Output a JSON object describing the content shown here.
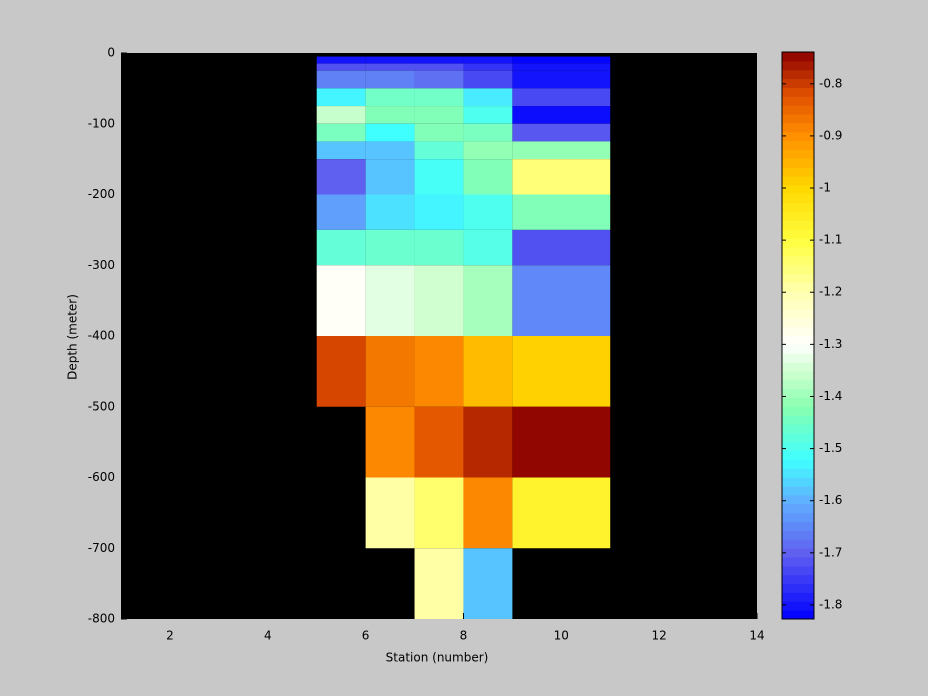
{
  "chart_data": {
    "type": "heatmap",
    "xlabel": "Station (number)",
    "ylabel": "Depth (meter)",
    "xlim": [
      1,
      14
    ],
    "ylim": [
      -800,
      0
    ],
    "xticks": [
      2,
      4,
      6,
      8,
      10,
      12,
      14
    ],
    "yticks": [
      0,
      -100,
      -200,
      -300,
      -400,
      -500,
      -600,
      -700,
      -800
    ],
    "background": "#000000",
    "x_edges": [
      5,
      6,
      7,
      8,
      9,
      11
    ],
    "y_edges": [
      -5,
      -15,
      -25,
      -50,
      -75,
      -100,
      -125,
      -150,
      -200,
      -250,
      -300,
      -400,
      -500,
      -600,
      -700,
      -800
    ],
    "z": [
      [
        -1.8,
        -1.8,
        -1.8,
        -1.8,
        -1.82
      ],
      [
        -1.72,
        -1.72,
        -1.72,
        -1.76,
        -1.8
      ],
      [
        -1.66,
        -1.66,
        -1.68,
        -1.73,
        -1.8
      ],
      [
        -1.53,
        -1.45,
        -1.45,
        -1.54,
        -1.73
      ],
      [
        -1.36,
        -1.43,
        -1.43,
        -1.5,
        -1.81
      ],
      [
        -1.44,
        -1.52,
        -1.43,
        -1.44,
        -1.71
      ],
      [
        -1.58,
        -1.58,
        -1.47,
        -1.41,
        -1.41
      ],
      [
        -1.7,
        -1.58,
        -1.51,
        -1.43,
        -1.15
      ],
      [
        -1.62,
        -1.55,
        -1.53,
        -1.5,
        -1.43
      ],
      [
        -1.47,
        -1.46,
        -1.46,
        -1.49,
        -1.72
      ],
      [
        -1.29,
        -1.33,
        -1.35,
        -1.39,
        -1.65
      ],
      [
        -0.81,
        -0.87,
        -0.89,
        -0.96,
        -0.99
      ],
      [
        null,
        -0.89,
        -0.83,
        -0.78,
        -0.745
      ],
      [
        null,
        -1.19,
        -1.14,
        -0.89,
        -1.07
      ],
      [
        null,
        null,
        -1.19,
        -1.58,
        null
      ]
    ],
    "clim": [
      -1.827,
      -0.739
    ],
    "colorbar_ticks": [
      -0.8,
      -0.9,
      -1,
      -1.1,
      -1.2,
      -1.3,
      -1.4,
      -1.5,
      -1.6,
      -1.7,
      -1.8
    ],
    "colormap": [
      {
        "value": -1.827,
        "color": "#0000ff"
      },
      {
        "value": -1.7,
        "color": "#6060f0"
      },
      {
        "value": -1.6,
        "color": "#60b0ff"
      },
      {
        "value": -1.52,
        "color": "#40ffff"
      },
      {
        "value": -1.42,
        "color": "#88ffb0"
      },
      {
        "value": -1.35,
        "color": "#d0ffd0"
      },
      {
        "value": -1.3,
        "color": "#ffffff"
      },
      {
        "value": -1.2,
        "color": "#ffffb0"
      },
      {
        "value": -1.1,
        "color": "#ffff40"
      },
      {
        "value": -1.0,
        "color": "#ffd800"
      },
      {
        "value": -0.9,
        "color": "#ff9000"
      },
      {
        "value": -0.82,
        "color": "#e05000"
      },
      {
        "value": -0.739,
        "color": "#8b0000"
      }
    ]
  }
}
